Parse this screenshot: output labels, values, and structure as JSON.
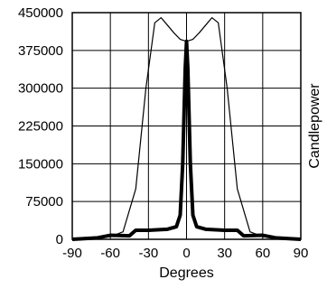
{
  "chart_data": {
    "type": "line",
    "title": "",
    "xlabel": "Degrees",
    "ylabel": "Candlepower",
    "xlim": [
      -90,
      90
    ],
    "ylim": [
      0,
      450000
    ],
    "x_ticks": [
      -90,
      -60,
      -30,
      0,
      30,
      60,
      90
    ],
    "x_tick_labels": [
      "-90",
      "-60",
      "-30",
      "0",
      "30",
      "60",
      "90"
    ],
    "y_ticks": [
      0,
      75000,
      150000,
      225000,
      300000,
      375000,
      450000
    ],
    "y_tick_labels": [
      "0",
      "75000",
      "150000",
      "225000",
      "300000",
      "375000",
      "450000"
    ],
    "grid": true,
    "legend": "none",
    "series": [
      {
        "style": "thin",
        "color": "#000000",
        "x": [
          -90,
          -75,
          -60,
          -50,
          -40,
          -32,
          -25,
          -20,
          -15,
          -10,
          -5,
          0,
          5,
          10,
          15,
          20,
          25,
          32,
          40,
          50,
          60,
          75,
          90
        ],
        "y": [
          0,
          2000,
          5000,
          15000,
          100000,
          300000,
          430000,
          440000,
          425000,
          410000,
          397000,
          393000,
          397000,
          410000,
          425000,
          440000,
          430000,
          300000,
          100000,
          15000,
          5000,
          2000,
          0
        ]
      },
      {
        "style": "thick",
        "color": "#000000",
        "x": [
          -90,
          -70,
          -60,
          -45,
          -40,
          -30,
          -15,
          -8,
          -5,
          -3,
          -1,
          0,
          1,
          3,
          5,
          8,
          15,
          30,
          40,
          45,
          60,
          70,
          90
        ],
        "y": [
          0,
          3000,
          8000,
          7000,
          18000,
          18000,
          20000,
          25000,
          48000,
          150000,
          340000,
          393000,
          340000,
          150000,
          48000,
          25000,
          20000,
          18000,
          18000,
          7000,
          8000,
          3000,
          0
        ]
      }
    ]
  }
}
